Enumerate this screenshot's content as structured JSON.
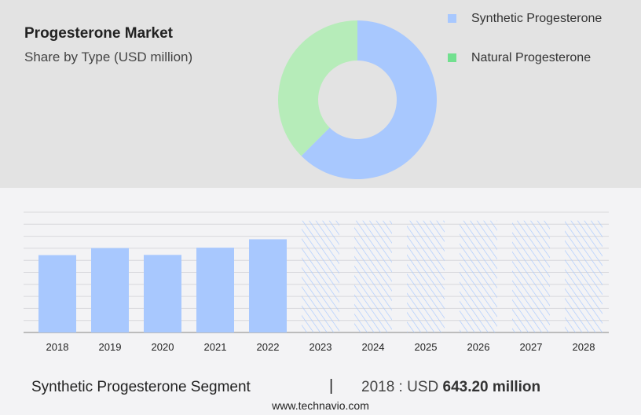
{
  "header": {
    "title": "Progesterone Market",
    "subtitle": "Share by Type (USD million)"
  },
  "chart_data": [
    {
      "type": "pie",
      "variant": "donut",
      "slices": [
        {
          "name": "Synthetic Progesterone",
          "share": 62.5,
          "color": "#a8c8fe"
        },
        {
          "name": "Natural Progesterone",
          "share": 37.5,
          "color": "#b6ecb9"
        }
      ],
      "legend": [
        {
          "label": "Synthetic Progesterone",
          "color": "#a8c8fe"
        },
        {
          "label": "Natural Progesterone",
          "color": "#72e08f"
        }
      ],
      "legend_placement": "right"
    },
    {
      "type": "bar",
      "categories": [
        "2018",
        "2019",
        "2020",
        "2021",
        "2022",
        "2023",
        "2024",
        "2025",
        "2026",
        "2027",
        "2028"
      ],
      "values": [
        643.2,
        702,
        645,
        705,
        775,
        null,
        null,
        null,
        null,
        null,
        null
      ],
      "forecast": [
        false,
        false,
        false,
        false,
        false,
        true,
        true,
        true,
        true,
        true,
        true
      ],
      "ylim": [
        0,
        1000
      ],
      "grid": true,
      "bar_color": "#a8c8fe",
      "xlabel": "",
      "ylabel": ""
    }
  ],
  "footer": {
    "segment": "Synthetic Progesterone Segment",
    "separator": "|",
    "year_label": "2018 : USD ",
    "value": "643.20 million",
    "site": "www.technavio.com"
  }
}
